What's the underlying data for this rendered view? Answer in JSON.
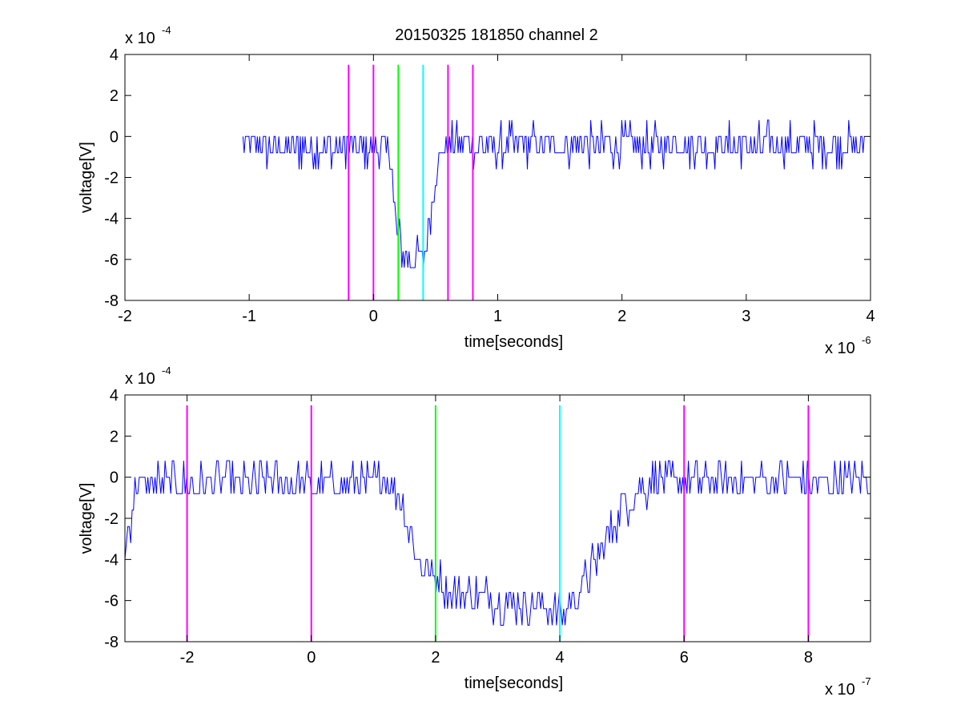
{
  "figure": {
    "title": "20150325 181850 channel 2"
  },
  "chart_data": [
    {
      "type": "line",
      "title": "20150325 181850 channel 2",
      "xlabel": "time[seconds]",
      "ylabel": "voltage[V]",
      "x_exponent_label": "x 10",
      "x_exponent_power": "-6",
      "y_exponent_label": "x 10",
      "y_exponent_power": "-4",
      "xlim": [
        -2,
        4
      ],
      "ylim": [
        -8,
        4
      ],
      "x_ticks": [
        -2,
        -1,
        0,
        1,
        2,
        3,
        4
      ],
      "y_ticks": [
        -8,
        -6,
        -4,
        -2,
        0,
        2,
        4
      ],
      "x_tick_labels": [
        "-2",
        "-1",
        "0",
        "1",
        "2",
        "3",
        "4"
      ],
      "y_tick_labels": [
        "-8",
        "-6",
        "-4",
        "-2",
        "0",
        "2",
        "4"
      ],
      "grid": false,
      "series": [
        {
          "color": "#0000ff",
          "x_start": -1.05,
          "x_end": 3.95,
          "keypoints": [
            {
              "x": -1.05,
              "y": -0.5
            },
            {
              "x": 0.14,
              "y": -0.6
            },
            {
              "x": 0.16,
              "y": -3.0
            },
            {
              "x": 0.2,
              "y": -5.0
            },
            {
              "x": 0.26,
              "y": -5.8
            },
            {
              "x": 0.38,
              "y": -6.0
            },
            {
              "x": 0.42,
              "y": -5.8
            },
            {
              "x": 0.47,
              "y": -3.0
            },
            {
              "x": 0.52,
              "y": -1.0
            },
            {
              "x": 0.6,
              "y": -0.4
            },
            {
              "x": 3.95,
              "y": -0.4
            }
          ],
          "noise_amplitude": 0.9
        }
      ],
      "vertical_lines": [
        {
          "x": -0.2,
          "color": "#ff00ff"
        },
        {
          "x": 0.0,
          "color": "#ff00ff"
        },
        {
          "x": 0.2,
          "color": "#00ff00"
        },
        {
          "x": 0.4,
          "color": "#00ffff"
        },
        {
          "x": 0.6,
          "color": "#ff00ff"
        },
        {
          "x": 0.8,
          "color": "#ff00ff"
        }
      ],
      "vline_range": [
        -8,
        3.5
      ]
    },
    {
      "type": "line",
      "xlabel": "time[seconds]",
      "ylabel": "voltage[V]",
      "x_exponent_label": "x 10",
      "x_exponent_power": "-7",
      "y_exponent_label": "x 10",
      "y_exponent_power": "-4",
      "xlim": [
        -3,
        9
      ],
      "ylim": [
        -8,
        4
      ],
      "x_ticks": [
        -2,
        0,
        2,
        4,
        6,
        8
      ],
      "y_ticks": [
        -8,
        -6,
        -4,
        -2,
        0,
        2,
        4
      ],
      "x_tick_labels": [
        "-2",
        "0",
        "2",
        "4",
        "6",
        "8"
      ],
      "y_tick_labels": [
        "-8",
        "-6",
        "-4",
        "-2",
        "0",
        "2",
        "4"
      ],
      "grid": false,
      "series": [
        {
          "color": "#0000ff",
          "x_start": -3,
          "x_end": 9,
          "keypoints": [
            {
              "x": -3.0,
              "y": -3.5
            },
            {
              "x": -2.8,
              "y": -0.3
            },
            {
              "x": 1.3,
              "y": -0.3
            },
            {
              "x": 1.5,
              "y": -1.5
            },
            {
              "x": 1.7,
              "y": -4.0
            },
            {
              "x": 2.2,
              "y": -5.5
            },
            {
              "x": 3.0,
              "y": -6.0
            },
            {
              "x": 3.8,
              "y": -6.3
            },
            {
              "x": 4.1,
              "y": -6.5
            },
            {
              "x": 4.5,
              "y": -4.5
            },
            {
              "x": 5.0,
              "y": -1.5
            },
            {
              "x": 5.5,
              "y": -0.2
            },
            {
              "x": 9.0,
              "y": -0.2
            }
          ],
          "noise_amplitude": 0.9
        }
      ],
      "vertical_lines": [
        {
          "x": -2,
          "color": "#ff00ff"
        },
        {
          "x": 0,
          "color": "#ff00ff"
        },
        {
          "x": 2,
          "color": "#00ff00"
        },
        {
          "x": 4,
          "color": "#00ffff"
        },
        {
          "x": 6,
          "color": "#ff00ff"
        },
        {
          "x": 8,
          "color": "#ff00ff"
        }
      ],
      "vline_range": [
        -8,
        3.5
      ]
    }
  ]
}
